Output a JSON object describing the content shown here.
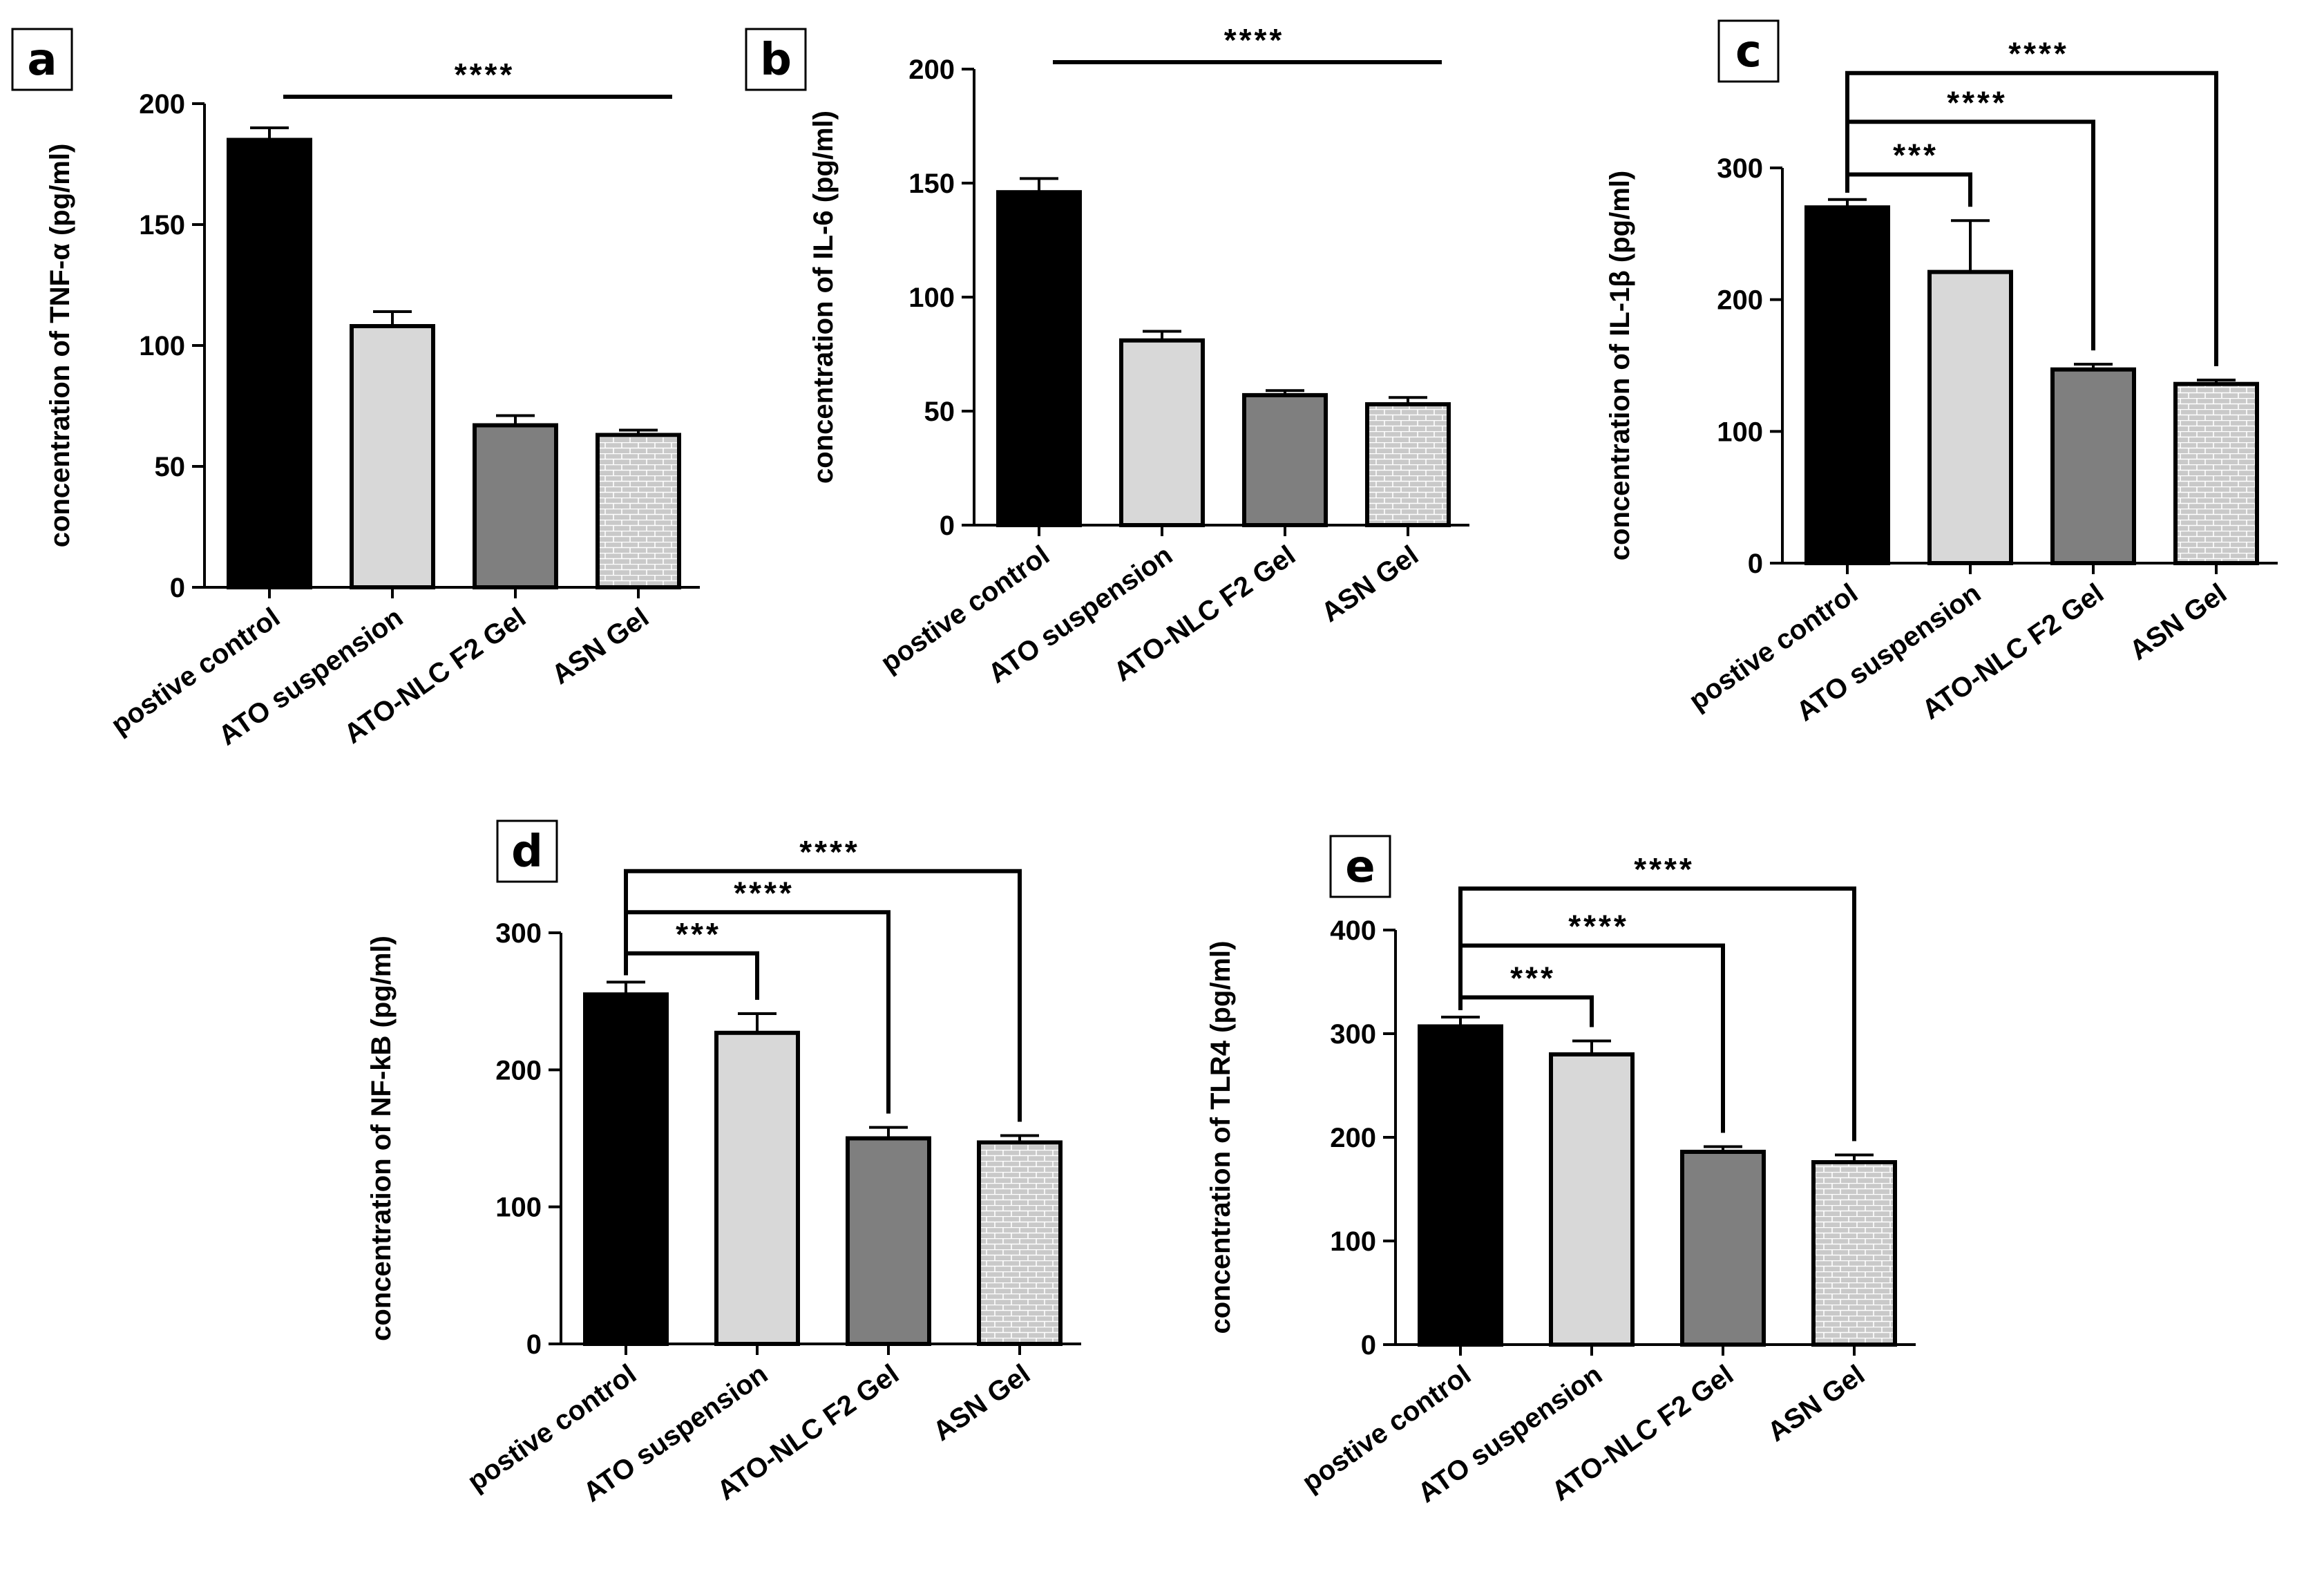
{
  "colors": {
    "pos": "#000000",
    "susp": "#d8d8d8",
    "nlc": "#7f7f7f",
    "asn": "#c9c9c9",
    "asn_mortar": "#ffffff"
  },
  "chart_data": [
    {
      "panel": "a",
      "type": "bar",
      "ylabel": "concentration of TNF-α (pg/ml)",
      "ylim": [
        0,
        200
      ],
      "yticks": [
        0,
        50,
        100,
        150,
        200
      ],
      "categories": [
        "postive control",
        "ATO  suspension",
        "ATO-NLC F2 Gel",
        "ASN Gel"
      ],
      "values": [
        185,
        108,
        67,
        63
      ],
      "errors": [
        5,
        6,
        4,
        2
      ],
      "significance": [
        {
          "from": 0,
          "to": 3,
          "label": "****",
          "style": "line"
        }
      ]
    },
    {
      "panel": "b",
      "type": "bar",
      "ylabel": "concentration of IL-6 (pg/ml)",
      "ylim": [
        0,
        200
      ],
      "yticks": [
        0,
        50,
        100,
        150,
        200
      ],
      "categories": [
        "postive control",
        "ATO  suspension",
        "ATO-NLC F2 Gel",
        "ASN Gel"
      ],
      "values": [
        146,
        81,
        57,
        53
      ],
      "errors": [
        6,
        4,
        2,
        3
      ],
      "significance": [
        {
          "from": 0,
          "to": 3,
          "label": "****",
          "style": "line"
        }
      ]
    },
    {
      "panel": "c",
      "type": "bar",
      "ylabel": "concentration of IL-1β (pg/ml)",
      "ylim": [
        0,
        300
      ],
      "yticks": [
        0,
        100,
        200,
        300
      ],
      "categories": [
        "postive control",
        "ATO  suspension",
        "ATO-NLC F2 Gel",
        "ASN Gel"
      ],
      "values": [
        270,
        221,
        147,
        136
      ],
      "errors": [
        6,
        39,
        4,
        3
      ],
      "significance": [
        {
          "from": 0,
          "to": 1,
          "label": "***",
          "level": 295
        },
        {
          "from": 0,
          "to": 2,
          "label": "****",
          "level": 335
        },
        {
          "from": 0,
          "to": 3,
          "label": "****",
          "level": 372
        }
      ]
    },
    {
      "panel": "d",
      "type": "bar",
      "ylabel": "concentration of NF-kB (pg/ml)",
      "ylim": [
        0,
        300
      ],
      "yticks": [
        0,
        100,
        200,
        300
      ],
      "categories": [
        "postive control",
        "ATO  suspension",
        "ATO-NLC F2 Gel",
        "ASN Gel"
      ],
      "values": [
        255,
        227,
        150,
        147
      ],
      "errors": [
        9,
        14,
        8,
        5
      ],
      "significance": [
        {
          "from": 0,
          "to": 1,
          "label": "***",
          "level": 285
        },
        {
          "from": 0,
          "to": 2,
          "label": "****",
          "level": 315
        },
        {
          "from": 0,
          "to": 3,
          "label": "****",
          "level": 345
        }
      ]
    },
    {
      "panel": "e",
      "type": "bar",
      "ylabel": "concentration of TLR4 (pg/ml)",
      "ylim": [
        0,
        400
      ],
      "yticks": [
        0,
        100,
        200,
        300,
        400
      ],
      "categories": [
        "postive control",
        "ATO  suspension",
        "ATO-NLC F2 Gel",
        "ASN Gel"
      ],
      "values": [
        307,
        280,
        186,
        176
      ],
      "errors": [
        9,
        13,
        5,
        7
      ],
      "significance": [
        {
          "from": 0,
          "to": 1,
          "label": "***",
          "level": 335
        },
        {
          "from": 0,
          "to": 2,
          "label": "****",
          "level": 385
        },
        {
          "from": 0,
          "to": 3,
          "label": "****",
          "level": 440
        }
      ]
    }
  ]
}
